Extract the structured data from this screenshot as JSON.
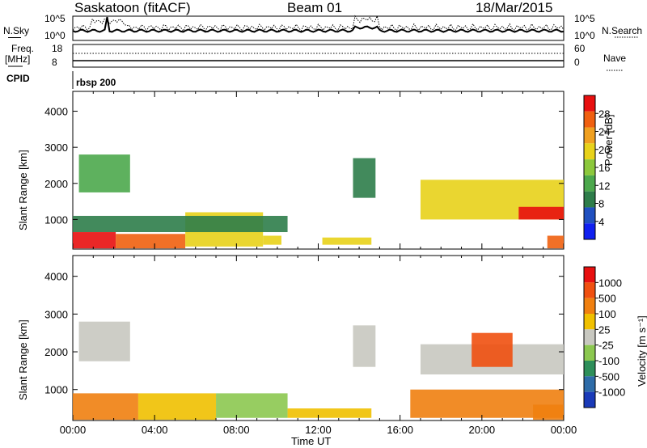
{
  "header": {
    "station": "Saskatoon (fitACF)",
    "beam": "Beam 01",
    "date": "18/Mar/2015"
  },
  "nsky_panel": {
    "left_label": "N.Sky",
    "right_label": "N.Search",
    "left_ticks": [
      "10^5",
      "10^0"
    ],
    "right_ticks": [
      "10^5",
      "10^0"
    ]
  },
  "freq_panel": {
    "left_label_line1": "Freq.",
    "left_label_line2": "[MHz]",
    "right_label": "Nave",
    "left_ticks": [
      "18",
      "8"
    ],
    "right_ticks": [
      "60",
      "0"
    ]
  },
  "cpid": {
    "label": "CPID",
    "value": "rbsp 200"
  },
  "chart_data": [
    {
      "type": "heatmap",
      "name": "power",
      "ylabel": "Slant Range [km]",
      "xlabel": "",
      "ylim": [
        180,
        4550
      ],
      "xlim_hours": [
        0,
        24
      ],
      "yticks": [
        1000,
        2000,
        3000,
        4000
      ],
      "colorbar": {
        "label": "Power [dB]",
        "ticks": [
          "28",
          "24",
          "20",
          "16",
          "12",
          "8",
          "4"
        ],
        "colors": [
          "#1020f0",
          "#2050c0",
          "#2e7d4a",
          "#4ca84c",
          "#8cc83c",
          "#e8d21a",
          "#f0a020",
          "#f06010",
          "#e81010"
        ]
      },
      "regions": [
        {
          "t0": 0.0,
          "t1": 2.1,
          "r0": 200,
          "r1": 650,
          "level": 8
        },
        {
          "t0": 2.1,
          "t1": 5.5,
          "r0": 200,
          "r1": 600,
          "level": 7
        },
        {
          "t0": 5.5,
          "t1": 9.3,
          "r0": 250,
          "r1": 1200,
          "level": 5
        },
        {
          "t0": 9.3,
          "t1": 10.2,
          "r0": 300,
          "r1": 550,
          "level": 5
        },
        {
          "t0": 12.2,
          "t1": 14.6,
          "r0": 300,
          "r1": 500,
          "level": 5
        },
        {
          "t0": 0.3,
          "t1": 2.8,
          "r0": 1750,
          "r1": 2800,
          "level": 3
        },
        {
          "t0": 13.7,
          "t1": 14.8,
          "r0": 1600,
          "r1": 2700,
          "level": 2
        },
        {
          "t0": 17.0,
          "t1": 24.0,
          "r0": 1000,
          "r1": 2100,
          "level": 5
        },
        {
          "t0": 21.8,
          "t1": 24.0,
          "r0": 1000,
          "r1": 1350,
          "level": 8
        },
        {
          "t0": 23.2,
          "t1": 24.0,
          "r0": 200,
          "r1": 550,
          "level": 7
        },
        {
          "t0": 0.0,
          "t1": 10.5,
          "r0": 650,
          "r1": 1100,
          "level": 2
        }
      ]
    },
    {
      "type": "heatmap",
      "name": "velocity",
      "ylabel": "Slant Range [km]",
      "xlabel": "Time UT",
      "ylim": [
        180,
        4550
      ],
      "xlim_hours": [
        0,
        24
      ],
      "yticks": [
        1000,
        2000,
        3000,
        4000
      ],
      "xticks": [
        "00:00",
        "04:00",
        "08:00",
        "12:00",
        "16:00",
        "20:00",
        "00:00"
      ],
      "colorbar": {
        "label": "Velocity [m s⁻¹]",
        "ticks": [
          "1000",
          "500",
          "100",
          "25",
          "-25",
          "-100",
          "-500",
          "-1000"
        ],
        "colors": [
          "#1a3ab8",
          "#2e6ca8",
          "#2e8f5a",
          "#8cc850",
          "#c8c8c0",
          "#f0c000",
          "#f08010",
          "#f05010",
          "#e81010"
        ]
      },
      "regions": [
        {
          "t0": 0.0,
          "t1": 3.2,
          "r0": 200,
          "r1": 900,
          "level": 6
        },
        {
          "t0": 3.2,
          "t1": 7.0,
          "r0": 200,
          "r1": 900,
          "level": 5
        },
        {
          "t0": 7.0,
          "t1": 10.5,
          "r0": 250,
          "r1": 900,
          "level": 3
        },
        {
          "t0": 10.5,
          "t1": 14.6,
          "r0": 250,
          "r1": 500,
          "level": 5
        },
        {
          "t0": 0.3,
          "t1": 2.8,
          "r0": 1750,
          "r1": 2800,
          "level": 4
        },
        {
          "t0": 13.7,
          "t1": 14.8,
          "r0": 1600,
          "r1": 2700,
          "level": 4
        },
        {
          "t0": 17.0,
          "t1": 24.0,
          "r0": 1400,
          "r1": 2200,
          "level": 4
        },
        {
          "t0": 19.5,
          "t1": 21.5,
          "r0": 1600,
          "r1": 2500,
          "level": 7
        },
        {
          "t0": 16.5,
          "t1": 24.0,
          "r0": 250,
          "r1": 1000,
          "level": 6
        },
        {
          "t0": 22.5,
          "t1": 24.0,
          "r0": 200,
          "r1": 600,
          "level": 6
        }
      ]
    }
  ]
}
